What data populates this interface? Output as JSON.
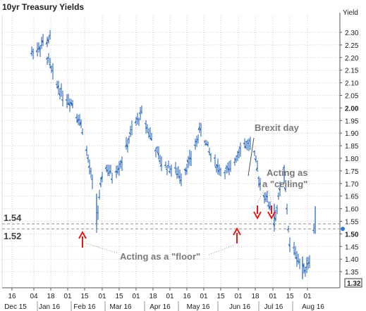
{
  "chart_data": {
    "type": "line",
    "title": "10yr Treasury Yields",
    "ylabel": "Yield",
    "ylim": [
      1.28,
      2.35
    ],
    "y_ticks": [
      2.3,
      2.25,
      2.2,
      2.15,
      2.1,
      2.05,
      2.0,
      1.95,
      1.9,
      1.85,
      1.8,
      1.75,
      1.7,
      1.65,
      1.6,
      1.55,
      1.5,
      1.45,
      1.4,
      1.35
    ],
    "y_tick_labels": [
      "2.30",
      "2.25",
      "2.20",
      "2.15",
      "2.10",
      "2.05",
      "2.00",
      "1.95",
      "1.90",
      "1.85",
      "1.80",
      "1.75",
      "1.70",
      "1.65",
      "1.60",
      "1.55",
      "1.50",
      "1.45",
      "1.40",
      "1.35"
    ],
    "bold_y_ticks": [
      "2.00",
      "1.50"
    ],
    "x_day_ticks": [
      "16",
      "04",
      "18",
      "01",
      "15",
      "01",
      "15",
      "01",
      "18",
      "01",
      "16",
      "01",
      "15",
      "01",
      "18",
      "01",
      "15",
      "01"
    ],
    "x_month_labels": [
      "Dec 15",
      "Jan 16",
      "Feb 16",
      "Mar 16",
      "Apr 16",
      "May 16",
      "Jun 16",
      "Jul 16",
      "Aug 16"
    ],
    "current_value": "1.32",
    "grid": true,
    "series": [
      {
        "x": [
          "12-14",
          "12-21",
          "12-28",
          "01-04",
          "01-11",
          "01-18",
          "01-25",
          "02-01",
          "02-08",
          "02-11",
          "02-16",
          "02-22",
          "02-29",
          "03-07",
          "03-14",
          "03-21",
          "03-28",
          "04-04",
          "04-11",
          "04-18",
          "04-25",
          "05-02",
          "05-09",
          "05-16",
          "05-23",
          "05-31",
          "06-06",
          "06-13",
          "06-16",
          "06-20",
          "06-23",
          "06-27",
          "07-01",
          "07-06",
          "07-11",
          "07-15"
        ],
        "values": [
          2.22,
          2.25,
          2.28,
          2.26,
          2.13,
          2.05,
          2.02,
          1.92,
          1.7,
          1.54,
          1.78,
          1.73,
          1.79,
          1.91,
          1.98,
          1.88,
          1.78,
          1.76,
          1.73,
          1.8,
          1.92,
          1.81,
          1.75,
          1.75,
          1.85,
          1.86,
          1.7,
          1.61,
          1.54,
          1.67,
          1.75,
          1.45,
          1.43,
          1.35,
          1.4,
          1.55
        ]
      }
    ],
    "reference_lines": [
      {
        "label": "1.54",
        "value": 1.54
      },
      {
        "label": "1.52",
        "value": 1.52
      }
    ],
    "annotations": [
      {
        "text": "Brexit day",
        "x": "06-23"
      },
      {
        "text": "Acting as",
        "text2": "a \"ceiling\"",
        "x": "07-11"
      },
      {
        "text": "Acting as a \"floor\"",
        "x": "04-05"
      }
    ],
    "colors": {
      "bars": "#1f5fb4",
      "arrows": "#e11b1b",
      "ref_lines": "#8f8f8f",
      "marker": "#2b7bd6",
      "annotation_text": "#7a7a7a"
    }
  }
}
